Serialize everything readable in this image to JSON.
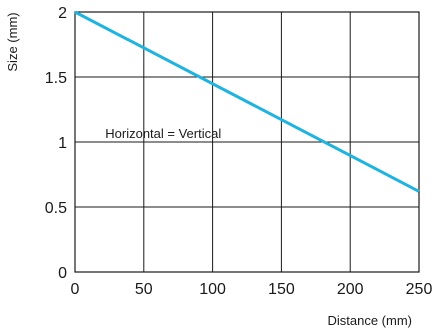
{
  "chart_data": {
    "type": "line",
    "xlabel": "Distance (mm)",
    "ylabel": "Size (mm)",
    "xlim": [
      0,
      250
    ],
    "ylim": [
      0,
      2
    ],
    "x_ticks": [
      0,
      50,
      100,
      150,
      200,
      250
    ],
    "y_ticks": [
      0,
      0.5,
      1,
      1.5,
      2
    ],
    "x_tick_labels": [
      "0",
      "50",
      "100",
      "150",
      "200",
      "250"
    ],
    "y_tick_labels": [
      "0",
      "0.5",
      "1",
      "1.5",
      "2"
    ],
    "grid": true,
    "series": [
      {
        "x": [
          0,
          250
        ],
        "y": [
          2,
          0.62
        ],
        "color": "#1fb3e0"
      }
    ],
    "annotations": [
      {
        "text": "Horizontal = Vertical",
        "x": 22,
        "y": 1.03
      }
    ]
  }
}
